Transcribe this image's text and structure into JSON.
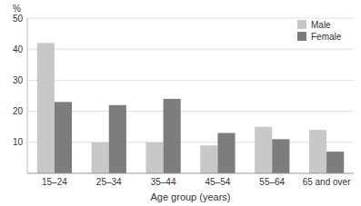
{
  "chart_data": {
    "type": "bar",
    "x_label": "Age group (years)",
    "y_label": "%",
    "categories": [
      "15–24",
      "25–34",
      "35–44",
      "45–54",
      "55–64",
      "65 and over"
    ],
    "series": [
      {
        "name": "Male",
        "color": "#c8c8c8",
        "values": [
          42,
          10,
          10,
          9,
          15,
          14
        ]
      },
      {
        "name": "Female",
        "color": "#7d7d7d",
        "values": [
          23,
          22,
          24,
          13,
          11,
          7
        ]
      }
    ],
    "ylim": [
      0,
      50
    ],
    "yticks": [
      10,
      20,
      30,
      40,
      50
    ],
    "grid": true,
    "legend": "upper-right"
  }
}
